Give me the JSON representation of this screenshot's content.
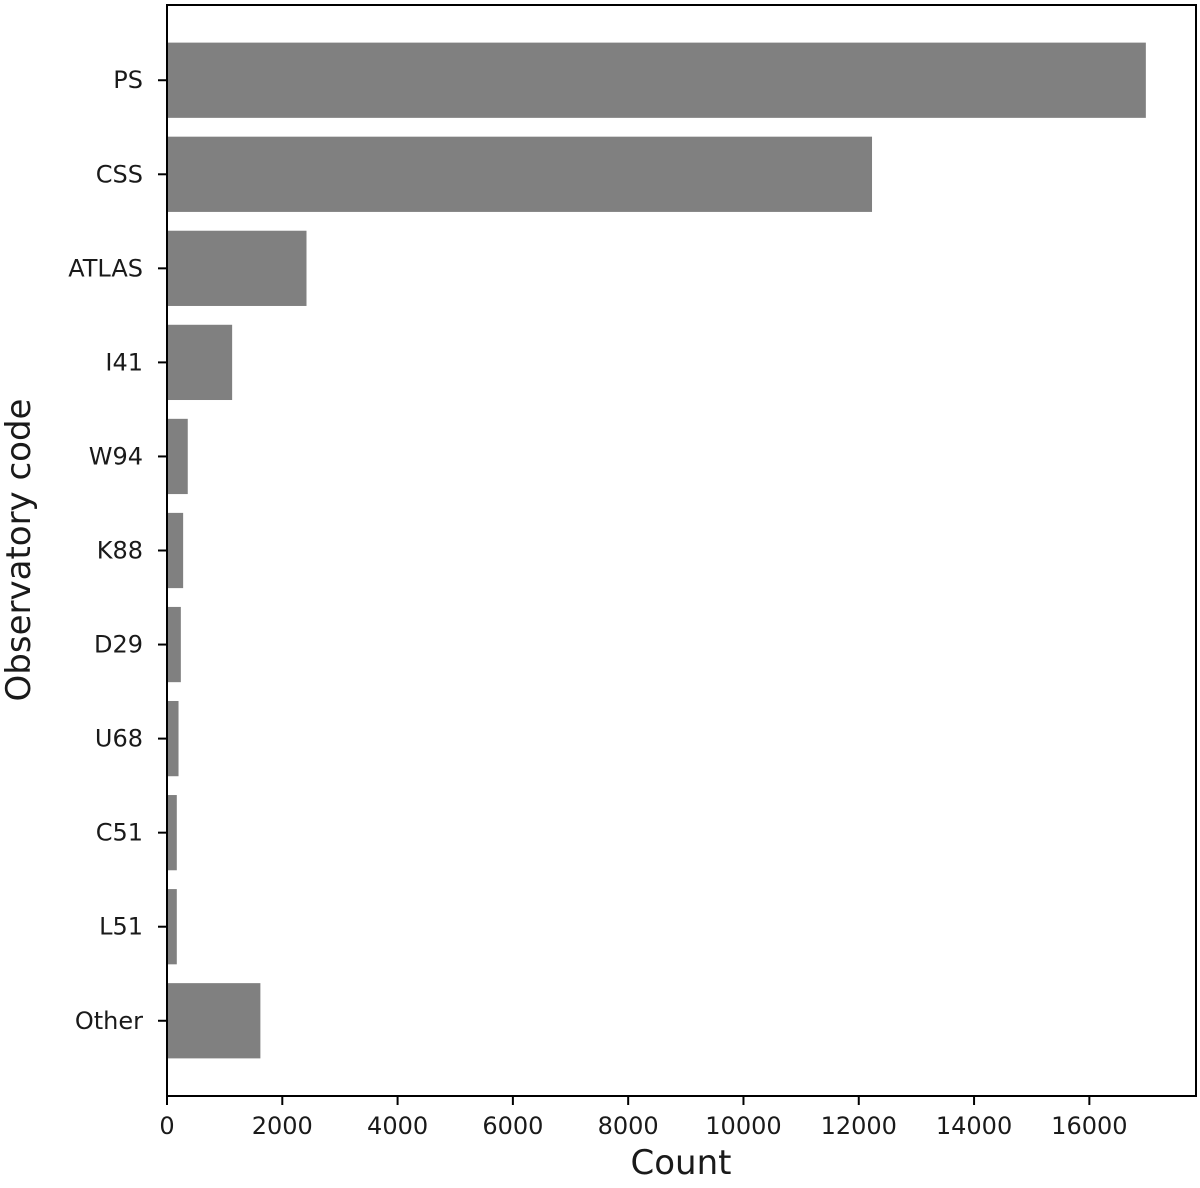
{
  "chart_data": {
    "type": "bar",
    "orientation": "horizontal",
    "title": "",
    "xlabel": "Count",
    "ylabel": "Observatory code",
    "categories": [
      "PS",
      "CSS",
      "ATLAS",
      "I41",
      "W94",
      "K88",
      "D29",
      "U68",
      "C51",
      "L51",
      "Other"
    ],
    "values": [
      16980,
      12230,
      2420,
      1130,
      360,
      280,
      240,
      200,
      170,
      170,
      1620
    ],
    "xlim": [
      0,
      17850
    ],
    "xticks": [
      0,
      2000,
      4000,
      6000,
      8000,
      10000,
      12000,
      14000,
      16000
    ],
    "grid": false,
    "bar_color": "#808080"
  }
}
